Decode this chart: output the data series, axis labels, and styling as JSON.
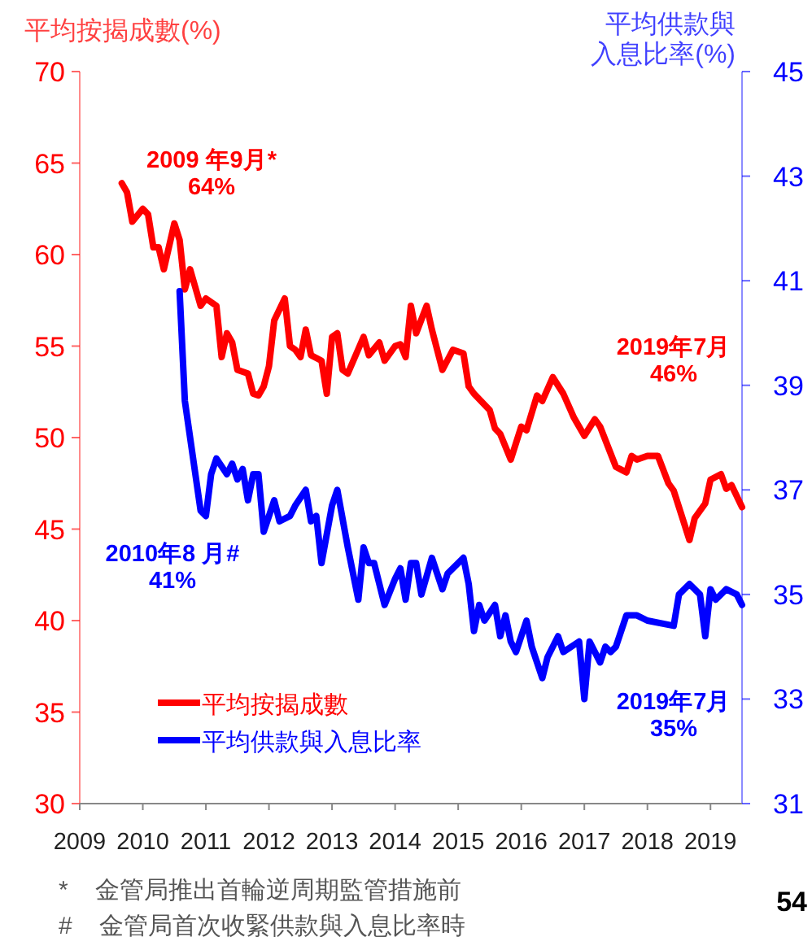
{
  "chart_data": {
    "type": "line",
    "ylabel": "平均按揭成數(%)",
    "y2label": "平均供款與入息比率(%)",
    "xlim": [
      "2009-01",
      "2019-07"
    ],
    "xticks": [
      "2009",
      "2010",
      "2011",
      "2012",
      "2013",
      "2014",
      "2015",
      "2016",
      "2017",
      "2018",
      "2019"
    ],
    "ylim": [
      30,
      70
    ],
    "yticks": [
      30,
      35,
      40,
      45,
      50,
      55,
      60,
      65,
      70
    ],
    "y2lim": [
      31,
      45
    ],
    "y2ticks": [
      31,
      33,
      35,
      37,
      39,
      41,
      43,
      45
    ],
    "legend": "bottom left",
    "grid": false,
    "line_style": "solid",
    "annotations": [
      "2009 年9月*\n64%",
      "2019年7月\n46%",
      "2010年8 月#\n41%",
      "2019年7月\n35%",
      "*    金管局推出首輪逆周期監管措施前",
      "#    金管局首次收緊供款與入息比率時",
      "54"
    ],
    "series": [
      {
        "name": "平均按揭成數",
        "color": "#ff0000",
        "x": [
          "2009-09",
          "2009-10",
          "2009-11",
          "2010-01",
          "2010-02",
          "2010-03",
          "2010-04",
          "2010-05",
          "2010-07",
          "2010-08",
          "2010-09",
          "2010-10",
          "2010-12",
          "2011-01",
          "2011-03",
          "2011-04",
          "2011-05",
          "2011-06",
          "2011-07",
          "2011-09",
          "2011-10",
          "2011-11",
          "2011-12",
          "2012-01",
          "2012-02",
          "2012-04",
          "2012-05",
          "2012-06",
          "2012-07",
          "2012-08",
          "2012-09",
          "2012-11",
          "2012-12",
          "2013-01",
          "2013-02",
          "2013-03",
          "2013-04",
          "2013-07",
          "2013-08",
          "2013-10",
          "2013-11",
          "2014-01",
          "2014-02",
          "2014-03",
          "2014-04",
          "2014-05",
          "2014-07",
          "2014-08",
          "2014-10",
          "2014-12",
          "2015-02",
          "2015-03",
          "2015-04",
          "2015-07",
          "2015-08",
          "2015-09",
          "2015-11",
          "2016-01",
          "2016-02",
          "2016-04",
          "2016-05",
          "2016-07",
          "2016-09",
          "2016-11",
          "2017-01",
          "2017-03",
          "2017-04",
          "2017-07",
          "2017-09",
          "2017-10",
          "2017-11",
          "2018-01",
          "2018-03",
          "2018-05",
          "2018-06",
          "2018-09",
          "2018-10",
          "2018-12",
          "2019-01",
          "2019-03",
          "2019-04",
          "2019-05",
          "2019-07"
        ],
        "values": [
          63.9,
          63.4,
          61.8,
          62.5,
          62.2,
          60.4,
          60.4,
          59.2,
          61.7,
          60.8,
          58.1,
          59.2,
          57.2,
          57.6,
          57.2,
          54.4,
          55.7,
          55.2,
          53.7,
          53.5,
          52.4,
          52.3,
          52.8,
          53.9,
          56.4,
          57.6,
          55.0,
          54.8,
          54.4,
          55.9,
          54.5,
          54.2,
          52.4,
          55.5,
          55.7,
          53.7,
          53.5,
          55.5,
          54.5,
          55.2,
          54.2,
          55.0,
          55.1,
          54.4,
          57.2,
          55.7,
          57.2,
          55.9,
          53.7,
          54.8,
          54.6,
          52.8,
          52.4,
          51.5,
          50.5,
          50.2,
          48.8,
          50.6,
          50.4,
          52.3,
          52.0,
          53.3,
          52.4,
          51.1,
          50.1,
          51.0,
          50.6,
          48.4,
          48.1,
          49.0,
          48.8,
          49.0,
          49.0,
          47.5,
          47.1,
          44.4,
          45.6,
          46.4,
          47.7,
          48.0,
          47.2,
          47.4,
          46.2
        ]
      },
      {
        "name": "平均供款與入息比率",
        "color": "#0000ff",
        "axis": "y2",
        "x": [
          "2010-08",
          "2010-09",
          "2010-11",
          "2010-12",
          "2011-01",
          "2011-02",
          "2011-03",
          "2011-05",
          "2011-06",
          "2011-07",
          "2011-08",
          "2011-09",
          "2011-10",
          "2011-11",
          "2011-12",
          "2012-02",
          "2012-03",
          "2012-05",
          "2012-06",
          "2012-08",
          "2012-09",
          "2012-10",
          "2012-11",
          "2013-01",
          "2013-02",
          "2013-04",
          "2013-06",
          "2013-07",
          "2013-08",
          "2013-09",
          "2013-11",
          "2014-01",
          "2014-02",
          "2014-03",
          "2014-04",
          "2014-05",
          "2014-06",
          "2014-08",
          "2014-10",
          "2014-11",
          "2015-02",
          "2015-03",
          "2015-04",
          "2015-05",
          "2015-06",
          "2015-08",
          "2015-09",
          "2015-10",
          "2015-11",
          "2015-12",
          "2016-02",
          "2016-03",
          "2016-05",
          "2016-06",
          "2016-08",
          "2016-09",
          "2016-12",
          "2017-01",
          "2017-02",
          "2017-04",
          "2017-05",
          "2017-06",
          "2017-07",
          "2017-09",
          "2017-11",
          "2018-01",
          "2018-06",
          "2018-07",
          "2018-09",
          "2018-11",
          "2018-12",
          "2019-01",
          "2019-02",
          "2019-04",
          "2019-06",
          "2019-07"
        ],
        "values": [
          40.8,
          38.7,
          37.3,
          36.6,
          36.5,
          37.3,
          37.6,
          37.3,
          37.5,
          37.2,
          37.4,
          36.8,
          37.3,
          37.3,
          36.2,
          36.8,
          36.4,
          36.5,
          36.7,
          37.0,
          36.4,
          36.5,
          35.6,
          36.7,
          37.0,
          35.9,
          34.9,
          35.9,
          35.6,
          35.6,
          34.8,
          35.3,
          35.5,
          34.9,
          35.6,
          35.6,
          35.0,
          35.7,
          35.1,
          35.4,
          35.7,
          35.2,
          34.3,
          34.8,
          34.5,
          34.8,
          34.2,
          34.6,
          34.1,
          33.9,
          34.5,
          34.0,
          33.4,
          33.8,
          34.2,
          33.9,
          34.1,
          33.0,
          34.1,
          33.7,
          34.0,
          33.9,
          34.0,
          34.6,
          34.6,
          34.5,
          34.4,
          35.0,
          35.2,
          35.0,
          34.2,
          35.1,
          34.9,
          35.1,
          35.0,
          34.8
        ]
      }
    ]
  }
}
